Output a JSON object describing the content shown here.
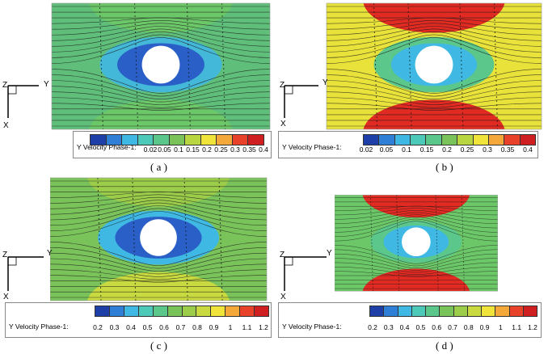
{
  "panels": [
    {
      "id": "a",
      "caption": "( a )",
      "legend_title": "Y Velocity Phase-1:",
      "ticks": [
        "0.02",
        "0.05",
        "0.1",
        "0.15",
        "0.2",
        "0.25",
        "0.3",
        "0.35",
        "0.4"
      ],
      "colors": [
        "#1e3fa8",
        "#2f7fd6",
        "#3fb9e4",
        "#4cc9b8",
        "#5bc78a",
        "#7ac35a",
        "#b8d640",
        "#f0e43a",
        "#f5a83a",
        "#e8432a",
        "#d01f20"
      ],
      "field": {
        "background": "#5fbf7a",
        "band_top": "#6cc768",
        "band_bottom": "#6cc768",
        "halo": "#43b8d8",
        "ring": "#2a5fc7"
      }
    },
    {
      "id": "b",
      "caption": "( b )",
      "legend_title": "Y Velocity Phase-1:",
      "ticks": [
        "0.02",
        "0.05",
        "0.1",
        "0.15",
        "0.2",
        "0.25",
        "0.3",
        "0.35",
        "0.4"
      ],
      "colors": [
        "#1e3fa8",
        "#2f7fd6",
        "#3fb9e4",
        "#4cc9b8",
        "#5bc78a",
        "#7ac35a",
        "#b8d640",
        "#f0e43a",
        "#f5a83a",
        "#e8432a",
        "#d01f20"
      ],
      "field": {
        "background": "#e8e23a",
        "band_top": "#e02a22",
        "band_bottom": "#e02a22",
        "halo": "#5bc78a",
        "ring": "#3fb9e4"
      }
    },
    {
      "id": "c",
      "caption": "( c )",
      "legend_title": "Y Velocity Phase-1:",
      "ticks": [
        "0.2",
        "0.3",
        "0.4",
        "0.5",
        "0.6",
        "0.7",
        "0.8",
        "0.9",
        "1",
        "1.1",
        "1.2"
      ],
      "colors": [
        "#1e3fa8",
        "#2f7fd6",
        "#3fb9e4",
        "#4cc9b8",
        "#5bc78a",
        "#7ac35a",
        "#9ccd4a",
        "#c8da40",
        "#f0e43a",
        "#f5a83a",
        "#e8432a",
        "#d01f20"
      ],
      "field": {
        "background": "#7ac35a",
        "band_top": "#9ccd4a",
        "band_bottom": "#c8da40",
        "halo": "#3fb9e4",
        "ring": "#2a5fc7"
      }
    },
    {
      "id": "d",
      "caption": "( d )",
      "legend_title": "Y Velocity Phase-1:",
      "ticks": [
        "0.2",
        "0.3",
        "0.4",
        "0.5",
        "0.6",
        "0.7",
        "0.8",
        "0.9",
        "1",
        "1.1",
        "1.2"
      ],
      "colors": [
        "#1e3fa8",
        "#2f7fd6",
        "#3fb9e4",
        "#4cc9b8",
        "#5bc78a",
        "#7ac35a",
        "#9ccd4a",
        "#c8da40",
        "#f0e43a",
        "#f5a83a",
        "#e8432a",
        "#d01f20"
      ],
      "field": {
        "background": "#6cc768",
        "band_top": "#e02a22",
        "band_bottom": "#e02a22",
        "halo": "#5bc78a",
        "ring": "#3fb9e4"
      }
    }
  ],
  "axes": {
    "z": "Z",
    "y": "Y",
    "x": "X"
  }
}
